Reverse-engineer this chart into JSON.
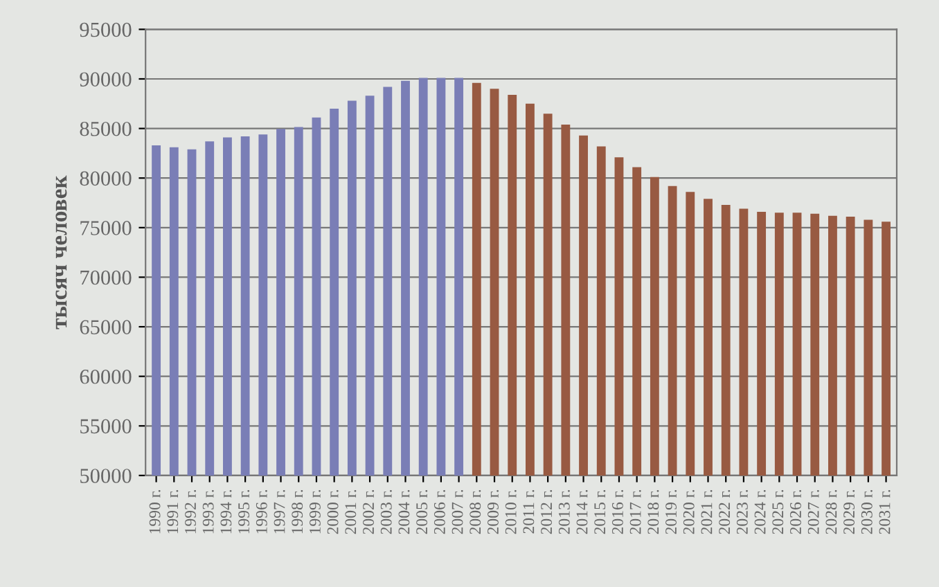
{
  "chart_data": {
    "type": "bar",
    "ylabel": "тысяч человек",
    "categories": [
      "1990 г.",
      "1991 г.",
      "1992 г.",
      "1993 г.",
      "1994 г.",
      "1995 г.",
      "1996 г.",
      "1997 г.",
      "1998 г.",
      "1999 г.",
      "2000 г.",
      "2001 г.",
      "2002 г.",
      "2003 г.",
      "2004 г.",
      "2005 г.",
      "2006 г.",
      "2007 г.",
      "2008 г.",
      "2009 г.",
      "2010 г.",
      "2011 г.",
      "2012 г.",
      "2013 г.",
      "2014 г.",
      "2015 г.",
      "2016 г.",
      "2017 г.",
      "2018 г.",
      "2019 г.",
      "2020 г.",
      "2021 г.",
      "2022 г.",
      "2023 г.",
      "2024 г.",
      "2025 г.",
      "2026 г.",
      "2027 г.",
      "2028 г.",
      "2029 г.",
      "2030 г.",
      "2031 г."
    ],
    "values": [
      83300,
      83100,
      82900,
      83700,
      84100,
      84200,
      84400,
      84950,
      85150,
      86100,
      87000,
      87800,
      88300,
      89200,
      89800,
      90100,
      90100,
      90100,
      89600,
      89000,
      88400,
      87500,
      86500,
      85400,
      84300,
      83200,
      82100,
      81100,
      80100,
      79200,
      78600,
      77900,
      77300,
      76900,
      76600,
      76500,
      76500,
      76400,
      76200,
      76100,
      75800,
      75600
    ],
    "colors": [
      "#7a7eb6",
      "#7a7eb6",
      "#7a7eb6",
      "#7a7eb6",
      "#7a7eb6",
      "#7a7eb6",
      "#7a7eb6",
      "#7a7eb6",
      "#7a7eb6",
      "#7a7eb6",
      "#7a7eb6",
      "#7a7eb6",
      "#7a7eb6",
      "#7a7eb6",
      "#7a7eb6",
      "#7a7eb6",
      "#7a7eb6",
      "#7a7eb6",
      "#985a42",
      "#985a42",
      "#985a42",
      "#985a42",
      "#985a42",
      "#985a42",
      "#985a42",
      "#985a42",
      "#985a42",
      "#985a42",
      "#985a42",
      "#985a42",
      "#985a42",
      "#985a42",
      "#985a42",
      "#985a42",
      "#985a42",
      "#985a42",
      "#985a42",
      "#985a42",
      "#985a42",
      "#985a42",
      "#985a42",
      "#985a42"
    ],
    "ylim": [
      50000,
      95000
    ],
    "yticks": [
      50000,
      55000,
      60000,
      65000,
      70000,
      75000,
      80000,
      85000,
      90000,
      95000
    ],
    "grid": "y"
  }
}
